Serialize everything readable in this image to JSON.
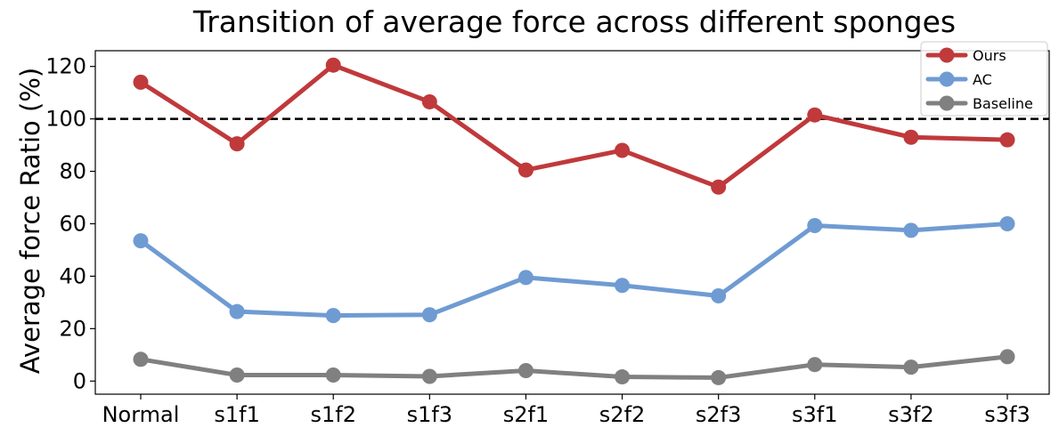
{
  "chart_data": {
    "type": "line",
    "title": "Transition of average force across different sponges",
    "xlabel": "",
    "ylabel": "Average force Ratio (%)",
    "categories": [
      "Normal",
      "s1f1",
      "s1f2",
      "s1f3",
      "s2f1",
      "s2f2",
      "s2f3",
      "s3f1",
      "s3f2",
      "s3f3"
    ],
    "ylim": [
      -5,
      126
    ],
    "yticks": [
      0,
      20,
      40,
      60,
      80,
      100,
      120
    ],
    "reference_line": 100,
    "grid": false,
    "legend_position": "top-right",
    "series": [
      {
        "name": "Ours",
        "color": "#c0393b",
        "values": [
          114,
          90.5,
          120.5,
          106.5,
          80.5,
          88,
          74,
          101.5,
          93,
          92
        ]
      },
      {
        "name": "AC",
        "color": "#6f9bd3",
        "values": [
          53.5,
          26.5,
          25,
          25.3,
          39.5,
          36.5,
          32.5,
          59.3,
          57.5,
          60
        ]
      },
      {
        "name": "Baseline",
        "color": "#808080",
        "values": [
          8.3,
          2.3,
          2.3,
          1.8,
          4,
          1.6,
          1.3,
          6.3,
          5.3,
          9.3
        ]
      }
    ]
  }
}
